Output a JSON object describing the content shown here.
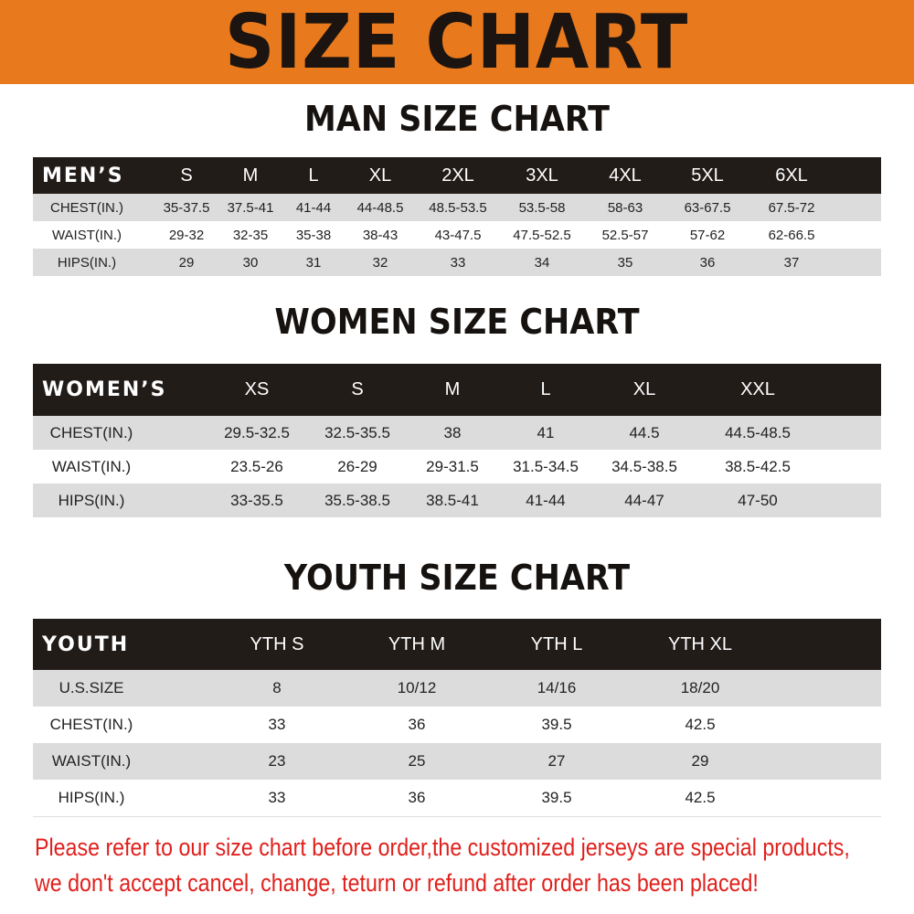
{
  "banner": {
    "title": "SIZE CHART",
    "color": "#e8791c"
  },
  "men": {
    "title": "MAN SIZE CHART",
    "header": [
      "MEN’S",
      "S",
      "M",
      "L",
      "XL",
      "2XL",
      "3XL",
      "4XL",
      "5XL",
      "6XL"
    ],
    "rows": [
      [
        "CHEST(IN.)",
        "35-37.5",
        "37.5-41",
        "41-44",
        "44-48.5",
        "48.5-53.5",
        "53.5-58",
        "58-63",
        "63-67.5",
        "67.5-72"
      ],
      [
        "WAIST(IN.)",
        "29-32",
        "32-35",
        "35-38",
        "38-43",
        "43-47.5",
        "47.5-52.5",
        "52.5-57",
        "57-62",
        "62-66.5"
      ],
      [
        "HIPS(IN.)",
        "29",
        "30",
        "31",
        "32",
        "33",
        "34",
        "35",
        "36",
        "37"
      ]
    ]
  },
  "women": {
    "title": "WOMEN SIZE CHART",
    "header": [
      "WOMEN’S",
      "XS",
      "S",
      "M",
      "L",
      "XL",
      "XXL"
    ],
    "rows": [
      [
        "CHEST(IN.)",
        "29.5-32.5",
        "32.5-35.5",
        "38",
        "41",
        "44.5",
        "44.5-48.5"
      ],
      [
        "WAIST(IN.)",
        "23.5-26",
        "26-29",
        "29-31.5",
        "31.5-34.5",
        "34.5-38.5",
        "38.5-42.5"
      ],
      [
        "HIPS(IN.)",
        "33-35.5",
        "35.5-38.5",
        "38.5-41",
        "41-44",
        "44-47",
        "47-50"
      ]
    ]
  },
  "youth": {
    "title": "YOUTH SIZE CHART",
    "header": [
      "YOUTH",
      "YTH S",
      "YTH M",
      "YTH L",
      "YTH XL"
    ],
    "rows": [
      [
        "U.S.SIZE",
        "8",
        "10/12",
        "14/16",
        "18/20"
      ],
      [
        "CHEST(IN.)",
        "33",
        "36",
        "39.5",
        "42.5"
      ],
      [
        "WAIST(IN.)",
        "23",
        "25",
        "27",
        "29"
      ],
      [
        "HIPS(IN.)",
        "33",
        "36",
        "39.5",
        "42.5"
      ]
    ]
  },
  "notice": {
    "line1": "Please refer to our size chart before order,the customized jerseys are special products,",
    "line2": "we don't accept cancel, change, teturn or refund after order has been placed!",
    "color": "#e0201c"
  }
}
